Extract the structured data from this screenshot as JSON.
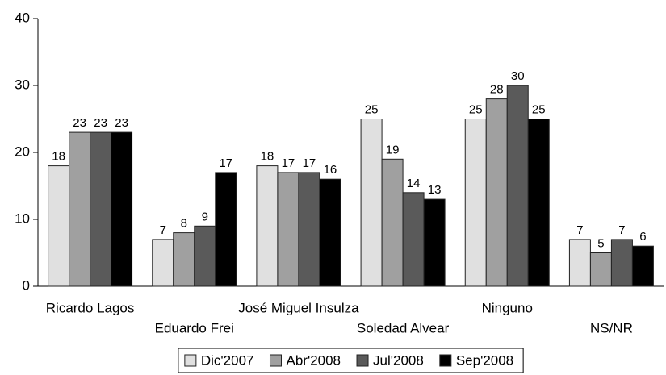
{
  "chart_data": {
    "type": "bar",
    "categories": [
      "Ricardo Lagos",
      "Eduardo Frei",
      "José Miguel Insulza",
      "Soledad Alvear",
      "Ninguno",
      "NS/NR"
    ],
    "series": [
      {
        "name": "Dic'2007",
        "color": "#e0e0e0",
        "values": [
          18,
          7,
          18,
          25,
          25,
          7
        ]
      },
      {
        "name": "Abr'2008",
        "color": "#a0a0a0",
        "values": [
          23,
          8,
          17,
          19,
          28,
          5
        ]
      },
      {
        "name": "Jul'2008",
        "color": "#5a5a5a",
        "values": [
          23,
          9,
          17,
          14,
          30,
          7
        ]
      },
      {
        "name": "Sep'2008",
        "color": "#000000",
        "values": [
          23,
          17,
          16,
          13,
          25,
          6
        ]
      }
    ],
    "ylim": [
      0,
      40
    ],
    "yticks": [
      0,
      10,
      20,
      30,
      40
    ],
    "legend": "bottom"
  }
}
